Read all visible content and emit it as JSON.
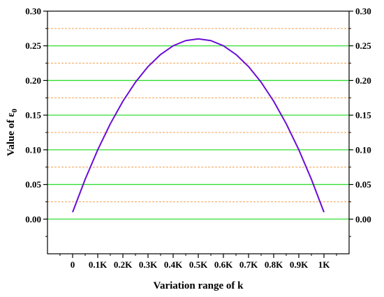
{
  "chart_data": {
    "type": "line",
    "xlabel": "Variation range of k",
    "ylabel": "Value of ε",
    "ylabel_subscript": "0",
    "x_tick_labels": [
      "0",
      "0.1K",
      "0.2K",
      "0.3K",
      "0.4K",
      "0.5K",
      "0.6K",
      "0.7K",
      "0.8K",
      "0.9K",
      "1K"
    ],
    "xlim": [
      -0.1,
      1.1
    ],
    "ylim": [
      -0.05,
      0.3
    ],
    "y_ticks": [
      0.0,
      0.05,
      0.1,
      0.15,
      0.2,
      0.25,
      0.3
    ],
    "y_tick_labels": [
      "0.00",
      "0.05",
      "0.10",
      "0.15",
      "0.20",
      "0.25",
      "0.30"
    ],
    "major_grid": [
      0.0,
      0.05,
      0.1,
      0.15,
      0.2,
      0.25
    ],
    "minor_grid": [
      0.025,
      0.075,
      0.125,
      0.175,
      0.225,
      0.275
    ],
    "series": [
      {
        "color": "#6a0dd6",
        "x": [
          0,
          0.05,
          0.1,
          0.15,
          0.2,
          0.25,
          0.3,
          0.35,
          0.4,
          0.45,
          0.5,
          0.55,
          0.6,
          0.65,
          0.7,
          0.75,
          0.8,
          0.85,
          0.9,
          0.95,
          1.0
        ],
        "y": [
          0.01,
          0.0575,
          0.1,
          0.1375,
          0.17,
          0.1975,
          0.22,
          0.2375,
          0.25,
          0.2575,
          0.26,
          0.2575,
          0.25,
          0.2375,
          0.22,
          0.1975,
          0.17,
          0.1375,
          0.1,
          0.0575,
          0.01
        ]
      }
    ],
    "colors": {
      "major_grid": "#33dd33",
      "minor_grid": "#f0a050",
      "axis": "#000000"
    }
  }
}
